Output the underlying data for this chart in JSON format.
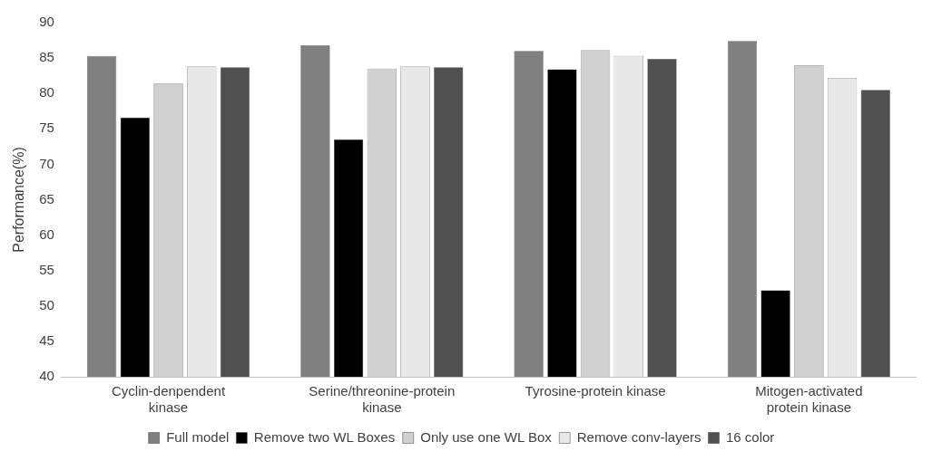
{
  "chart_data": {
    "type": "bar",
    "ylabel": "Performance(%)",
    "categories": [
      "Cyclin-denpendent kinase",
      "Serine/threonine-protein kinase",
      "Tyrosine-protein kinase",
      "Mitogen-activated protein kinase"
    ],
    "series": [
      {
        "name": "Full model",
        "color": "#808080",
        "values": [
          85.3,
          86.8,
          86.0,
          87.4
        ]
      },
      {
        "name": "Remove two WL Boxes",
        "color": "#000000",
        "values": [
          76.6,
          73.5,
          83.4,
          52.2
        ]
      },
      {
        "name": "Only use one WL Box",
        "color": "#d0d0d0",
        "values": [
          81.4,
          83.5,
          86.1,
          84.0
        ]
      },
      {
        "name": "Remove conv-layers",
        "color": "#e8e8e8",
        "values": [
          83.8,
          83.8,
          85.3,
          82.2
        ]
      },
      {
        "name": "16 color",
        "color": "#505050",
        "values": [
          83.7,
          83.7,
          84.9,
          80.5
        ]
      }
    ],
    "ylim": [
      40,
      90
    ],
    "yticks": [
      40,
      45,
      50,
      55,
      60,
      65,
      70,
      75,
      80,
      85,
      90
    ],
    "grid": false,
    "legend": "bottom"
  }
}
